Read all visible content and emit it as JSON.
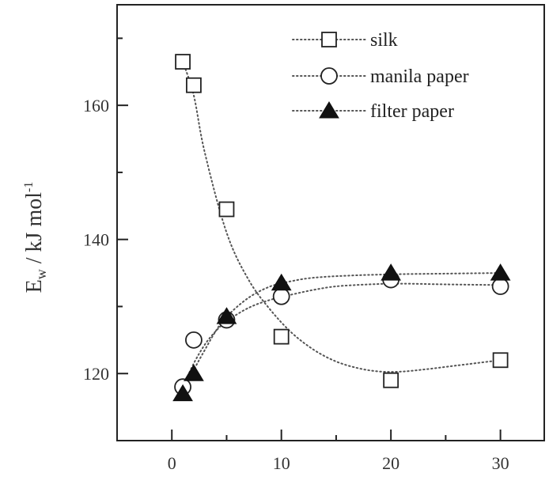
{
  "chart_data": {
    "type": "scatter",
    "xlabel": "",
    "ylabel_main": "E",
    "ylabel_sub": "w",
    "ylabel_rest": " / kJ mol",
    "ylabel_sup": "-1",
    "xlim": [
      -5,
      34
    ],
    "ylim": [
      110,
      175
    ],
    "x_ticks": [
      0,
      10,
      20,
      30
    ],
    "y_ticks": [
      120,
      140,
      160
    ],
    "grid": false,
    "legend_position": "top-right",
    "series": [
      {
        "name": "silk",
        "marker": "square-open",
        "x": [
          1,
          2,
          5,
          10,
          20,
          30
        ],
        "y": [
          166.5,
          163,
          144.5,
          125.5,
          119,
          122
        ],
        "fit": [
          [
            1,
            166.5
          ],
          [
            2,
            161.5
          ],
          [
            3,
            153
          ],
          [
            5,
            141
          ],
          [
            7,
            134
          ],
          [
            9,
            129.5
          ],
          [
            11,
            126
          ],
          [
            13,
            123.5
          ],
          [
            15,
            121.8
          ],
          [
            17,
            120.8
          ],
          [
            19,
            120.3
          ],
          [
            21,
            120.3
          ],
          [
            23,
            120.6
          ],
          [
            25,
            121
          ],
          [
            27,
            121.4
          ],
          [
            30,
            122
          ]
        ]
      },
      {
        "name": "manila paper",
        "marker": "circle-open",
        "x": [
          1,
          2,
          5,
          10,
          20,
          30
        ],
        "y": [
          118,
          125,
          128,
          131.5,
          134,
          133
        ],
        "fit": [
          [
            1,
            118
          ],
          [
            2,
            121.5
          ],
          [
            3,
            124.3
          ],
          [
            4,
            126.3
          ],
          [
            5,
            127.8
          ],
          [
            7,
            129.8
          ],
          [
            9,
            131
          ],
          [
            11,
            131.8
          ],
          [
            13,
            132.5
          ],
          [
            15,
            133
          ],
          [
            18,
            133.3
          ],
          [
            21,
            133.4
          ],
          [
            25,
            133.3
          ],
          [
            30,
            133.2
          ]
        ]
      },
      {
        "name": "filter paper",
        "marker": "triangle-filled",
        "x": [
          1,
          2,
          5,
          10,
          20,
          30
        ],
        "y": [
          117,
          120,
          128.5,
          133.5,
          135,
          135
        ],
        "fit": [
          [
            1,
            117
          ],
          [
            2,
            120.5
          ],
          [
            3,
            123.5
          ],
          [
            4,
            126.3
          ],
          [
            5,
            128.5
          ],
          [
            7,
            131.3
          ],
          [
            9,
            133
          ],
          [
            11,
            133.8
          ],
          [
            13,
            134.3
          ],
          [
            16,
            134.6
          ],
          [
            20,
            134.8
          ],
          [
            25,
            134.9
          ],
          [
            30,
            135
          ]
        ]
      }
    ]
  }
}
